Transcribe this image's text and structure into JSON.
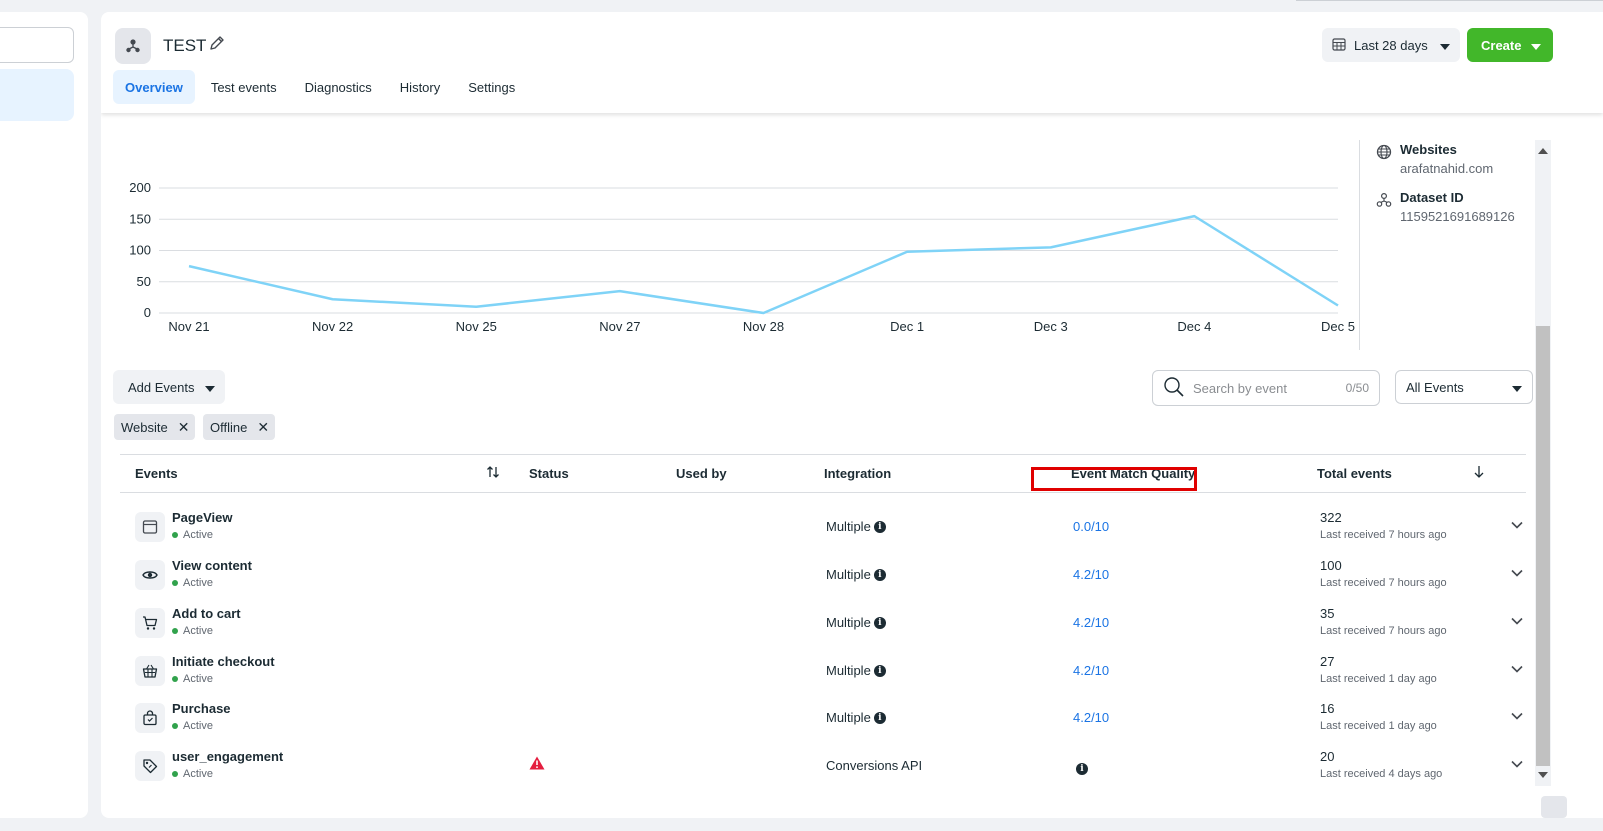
{
  "header": {
    "title": "TEST",
    "tabs": [
      {
        "label": "Overview",
        "active": true
      },
      {
        "label": "Test events",
        "active": false
      },
      {
        "label": "Diagnostics",
        "active": false
      },
      {
        "label": "History",
        "active": false
      },
      {
        "label": "Settings",
        "active": false
      }
    ],
    "date_range": "Last 28 days",
    "create_label": "Create"
  },
  "side_info": {
    "websites_label": "Websites",
    "websites_value": "arafatnahid.com",
    "dataset_label": "Dataset ID",
    "dataset_value": "1159521691689126"
  },
  "chart_data": {
    "type": "line",
    "x": [
      "Nov 21",
      "Nov 22",
      "Nov 25",
      "Nov 27",
      "Nov 28",
      "Dec 1",
      "Dec 3",
      "Dec 4",
      "Dec 5"
    ],
    "series": [
      {
        "values": [
          75,
          22,
          10,
          35,
          0,
          98,
          105,
          155,
          12
        ]
      }
    ],
    "yticks": [
      0,
      50,
      100,
      150,
      200
    ],
    "ylim": [
      0,
      200
    ],
    "color": "#7fd3f7",
    "grid": true
  },
  "filters": {
    "add_events_label": "Add Events",
    "chips": [
      "Website",
      "Offline"
    ],
    "search_placeholder": "Search by event",
    "search_count": "0/50",
    "all_events_label": "All Events"
  },
  "table": {
    "headers": {
      "events": "Events",
      "status": "Status",
      "used_by": "Used by",
      "integration": "Integration",
      "emq": "Event Match Quality",
      "total": "Total events"
    },
    "rows": [
      {
        "name": "PageView",
        "status": "Active",
        "integration": "Multiple",
        "emq": "0.0/10",
        "total": "322",
        "last": "Last received 7 hours ago",
        "icon": "browser-window-icon"
      },
      {
        "name": "View content",
        "status": "Active",
        "integration": "Multiple",
        "emq": "4.2/10",
        "total": "100",
        "last": "Last received 7 hours ago",
        "icon": "eye-icon"
      },
      {
        "name": "Add to cart",
        "status": "Active",
        "integration": "Multiple",
        "emq": "4.2/10",
        "total": "35",
        "last": "Last received 7 hours ago",
        "icon": "cart-icon"
      },
      {
        "name": "Initiate checkout",
        "status": "Active",
        "integration": "Multiple",
        "emq": "4.2/10",
        "total": "27",
        "last": "Last received 1 day ago",
        "icon": "basket-icon"
      },
      {
        "name": "Purchase",
        "status": "Active",
        "integration": "Multiple",
        "emq": "4.2/10",
        "total": "16",
        "last": "Last received 1 day ago",
        "icon": "shopping-bag-icon"
      },
      {
        "name": "user_engagement",
        "status": "Active",
        "integration": "Conversions API",
        "emq": "",
        "total": "20",
        "last": "Last received 4 days ago",
        "icon": "tag-icon",
        "warning": true
      }
    ]
  }
}
